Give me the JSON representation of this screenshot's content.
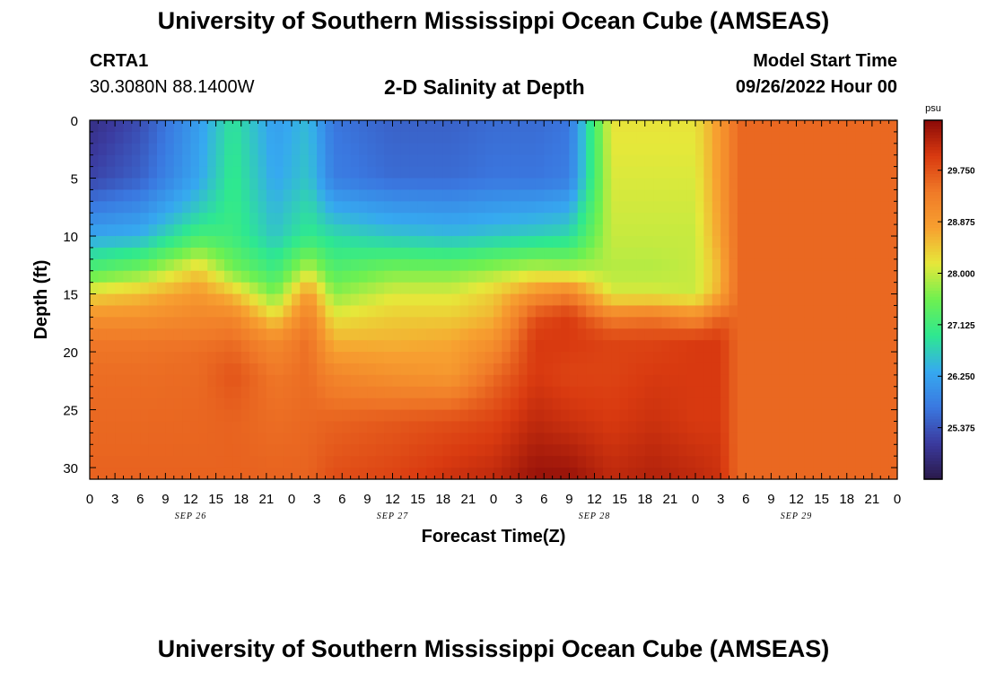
{
  "header": {
    "title": "University of Southern Mississippi Ocean Cube (AMSEAS)",
    "station_id": "CRTA1",
    "station_coords": "30.3080N  88.1400W",
    "subtitle": "2-D Salinity at Depth",
    "model_start_label": "Model Start Time",
    "model_start_value": "09/26/2022 Hour 00"
  },
  "footer": {
    "title": "University of Southern Mississippi Ocean Cube (AMSEAS)"
  },
  "chart_data": {
    "type": "heatmap",
    "title": "2-D Salinity at Depth",
    "xlabel": "Forecast Time(Z)",
    "ylabel": "Depth (ft)",
    "colorbar_unit": "psu",
    "colorbar_ticks": [
      "29.750",
      "28.875",
      "28.000",
      "27.125",
      "26.250",
      "25.375"
    ],
    "colorbar_values": [
      29.75,
      28.875,
      28.0,
      27.125,
      26.25,
      25.375
    ],
    "colorbar_range": [
      24.5,
      30.6
    ],
    "x_tick_labels": [
      "0",
      "3",
      "6",
      "9",
      "12",
      "15",
      "18",
      "21",
      "0",
      "3",
      "6",
      "9",
      "12",
      "15",
      "18",
      "21",
      "0",
      "3",
      "6",
      "9",
      "12",
      "15",
      "18",
      "21",
      "0",
      "3",
      "6",
      "9",
      "12",
      "15",
      "18",
      "21",
      "0"
    ],
    "x_range_hours": [
      0,
      96
    ],
    "day_labels": [
      {
        "label": "SEP 26",
        "hour": 12
      },
      {
        "label": "SEP 27",
        "hour": 36
      },
      {
        "label": "SEP 28",
        "hour": 60
      },
      {
        "label": "SEP 29",
        "hour": 84
      }
    ],
    "y_tick_labels": [
      "0",
      "5",
      "10",
      "15",
      "20",
      "25",
      "30"
    ],
    "y_range": [
      0,
      31
    ],
    "y_inverted": true,
    "colormap": [
      "#2a1a4a",
      "#3b3a9e",
      "#3a78e0",
      "#36a9f0",
      "#2ee890",
      "#6ef050",
      "#e6e83a",
      "#f7a030",
      "#f07a28",
      "#d93a10",
      "#8a0a08"
    ],
    "profiles": [
      {
        "hour": 0,
        "depth": [
          0,
          5,
          10,
          13,
          15,
          17,
          19,
          22,
          26,
          31
        ],
        "salinity": [
          24.9,
          25.2,
          26.3,
          27.3,
          28.3,
          29.0,
          29.4,
          29.5,
          29.55,
          29.6
        ]
      },
      {
        "hour": 6,
        "depth": [
          0,
          5,
          10,
          13,
          15,
          17,
          19,
          22,
          26,
          31
        ],
        "salinity": [
          25.3,
          25.5,
          26.4,
          27.6,
          28.5,
          29.0,
          29.4,
          29.5,
          29.55,
          29.6
        ]
      },
      {
        "hour": 13,
        "depth": [
          0,
          5,
          8,
          10,
          13,
          15,
          18,
          20,
          24,
          31
        ],
        "salinity": [
          26.2,
          26.3,
          26.7,
          27.2,
          28.4,
          28.9,
          29.3,
          29.5,
          29.55,
          29.6
        ]
      },
      {
        "hour": 17,
        "depth": [
          0,
          5,
          10,
          13,
          15,
          17,
          19,
          22,
          26,
          31
        ],
        "salinity": [
          26.9,
          27.0,
          27.1,
          27.6,
          28.5,
          29.2,
          29.5,
          29.75,
          29.6,
          29.6
        ]
      },
      {
        "hour": 22,
        "depth": [
          0,
          5,
          10,
          13,
          15,
          17,
          19,
          22,
          26,
          31
        ],
        "salinity": [
          26.2,
          26.3,
          26.6,
          27.1,
          27.6,
          28.3,
          29.1,
          29.4,
          29.5,
          29.6
        ]
      },
      {
        "hour": 26,
        "depth": [
          0,
          5,
          10,
          13,
          15,
          17,
          19,
          22,
          26,
          31
        ],
        "salinity": [
          26.5,
          26.6,
          27.0,
          28.0,
          28.9,
          29.3,
          29.5,
          29.5,
          29.55,
          29.6
        ]
      },
      {
        "hour": 29,
        "depth": [
          0,
          5,
          10,
          13,
          15,
          17,
          19,
          22,
          26,
          31
        ],
        "salinity": [
          25.7,
          25.8,
          26.8,
          27.3,
          27.7,
          28.2,
          28.6,
          29.2,
          29.6,
          29.8
        ]
      },
      {
        "hour": 36,
        "depth": [
          0,
          5,
          10,
          13,
          15,
          17,
          19,
          22,
          26,
          31
        ],
        "salinity": [
          25.5,
          25.6,
          26.6,
          27.6,
          28.1,
          28.4,
          28.6,
          29.0,
          29.7,
          29.9
        ]
      },
      {
        "hour": 43,
        "depth": [
          0,
          5,
          10,
          13,
          15,
          17,
          19,
          22,
          26,
          31
        ],
        "salinity": [
          25.5,
          25.6,
          26.5,
          27.6,
          28.1,
          28.4,
          28.7,
          28.9,
          29.8,
          30.1
        ]
      },
      {
        "hour": 48,
        "depth": [
          0,
          5,
          10,
          13,
          15,
          17,
          19,
          22,
          26,
          31
        ],
        "salinity": [
          25.6,
          25.7,
          26.6,
          27.8,
          28.4,
          28.6,
          29.0,
          29.5,
          29.9,
          30.2
        ]
      },
      {
        "hour": 53,
        "depth": [
          0,
          5,
          10,
          13,
          15,
          17,
          19,
          22,
          26,
          31
        ],
        "salinity": [
          25.6,
          25.7,
          26.7,
          28.0,
          29.0,
          29.8,
          30.0,
          30.0,
          30.2,
          30.5
        ]
      },
      {
        "hour": 57,
        "depth": [
          0,
          5,
          10,
          13,
          15,
          17,
          19,
          22,
          26,
          31
        ],
        "salinity": [
          25.7,
          25.8,
          26.8,
          27.9,
          29.3,
          30.0,
          30.0,
          29.9,
          30.1,
          30.5
        ]
      },
      {
        "hour": 62,
        "depth": [
          0,
          5,
          10,
          13,
          15,
          17,
          19,
          22,
          26,
          31
        ],
        "salinity": [
          28.2,
          28.1,
          28.0,
          27.9,
          28.1,
          29.3,
          29.9,
          29.9,
          30.0,
          30.2
        ]
      },
      {
        "hour": 67,
        "depth": [
          0,
          5,
          10,
          13,
          15,
          17,
          19,
          22,
          26,
          31
        ],
        "salinity": [
          28.2,
          28.1,
          28.0,
          27.9,
          28.1,
          29.4,
          29.9,
          30.0,
          30.1,
          30.3
        ]
      },
      {
        "hour": 72,
        "depth": [
          0,
          5,
          10,
          13,
          15,
          17,
          19,
          22,
          26,
          31
        ],
        "salinity": [
          28.2,
          28.1,
          28.0,
          28.0,
          28.0,
          29.1,
          30.0,
          30.0,
          30.0,
          30.2
        ]
      },
      {
        "hour": 75,
        "depth": [
          0,
          5,
          10,
          13,
          15,
          17,
          19,
          22,
          26,
          31
        ],
        "salinity": [
          28.9,
          28.9,
          28.8,
          28.6,
          28.7,
          29.6,
          30.0,
          30.0,
          30.0,
          30.1
        ]
      },
      {
        "hour": 77,
        "depth": [
          0,
          31
        ],
        "salinity": [
          29.55,
          29.55
        ]
      },
      {
        "hour": 96,
        "depth": [
          0,
          31
        ],
        "salinity": [
          29.55,
          29.55
        ]
      }
    ]
  }
}
